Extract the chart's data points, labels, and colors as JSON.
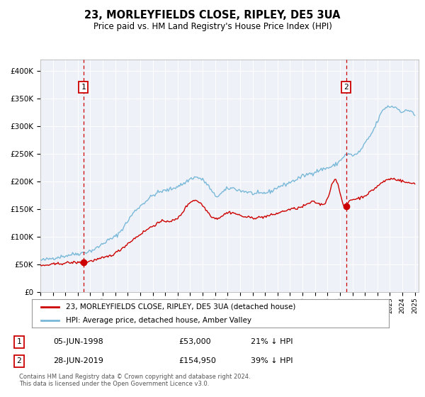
{
  "title": "23, MORLEYFIELDS CLOSE, RIPLEY, DE5 3UA",
  "subtitle": "Price paid vs. HM Land Registry's House Price Index (HPI)",
  "legend_line1": "23, MORLEYFIELDS CLOSE, RIPLEY, DE5 3UA (detached house)",
  "legend_line2": "HPI: Average price, detached house, Amber Valley",
  "sale1_date": "05-JUN-1998",
  "sale1_price": "£53,000",
  "sale1_hpi": "21% ↓ HPI",
  "sale1_year": 1998.44,
  "sale1_value": 53000,
  "sale2_date": "28-JUN-2019",
  "sale2_price": "£154,950",
  "sale2_hpi": "39% ↓ HPI",
  "sale2_year": 2019.49,
  "sale2_value": 154950,
  "hpi_color": "#7ab8d9",
  "price_color": "#cc0000",
  "vline_color": "#cc0000",
  "dot_color": "#cc0000",
  "plot_bg": "#eef2f8",
  "ylim": [
    0,
    420000
  ],
  "xlim_start": 1995.0,
  "xlim_end": 2025.3,
  "footer": "Contains HM Land Registry data © Crown copyright and database right 2024.\nThis data is licensed under the Open Government Licence v3.0."
}
